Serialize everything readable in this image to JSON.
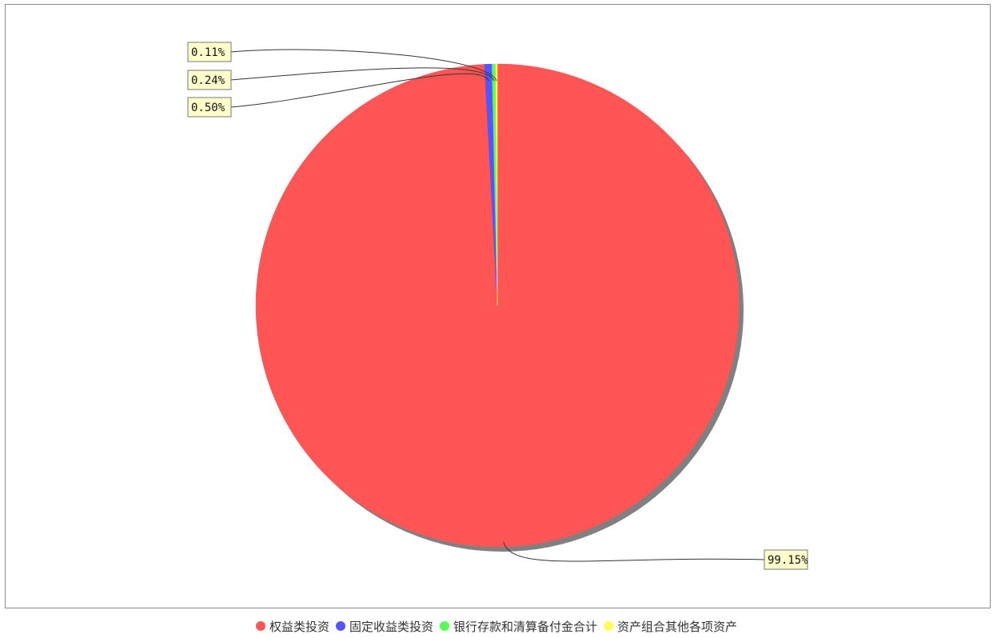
{
  "chart_data": {
    "type": "pie",
    "slices": [
      {
        "name": "权益类投资",
        "value": 99.15,
        "label": "99.15%",
        "color": "#ff5555"
      },
      {
        "name": "固定收益类投资",
        "value": 0.5,
        "label": "0.50%",
        "color": "#5555ff"
      },
      {
        "name": "银行存款和清算备付金合计",
        "value": 0.24,
        "label": "0.24%",
        "color": "#55ff55"
      },
      {
        "name": "资产组合其他各项资产",
        "value": 0.11,
        "label": "0.11%",
        "color": "#ffff55"
      }
    ],
    "title": "",
    "legend_position": "bottom",
    "shadow_color": "#808080"
  }
}
